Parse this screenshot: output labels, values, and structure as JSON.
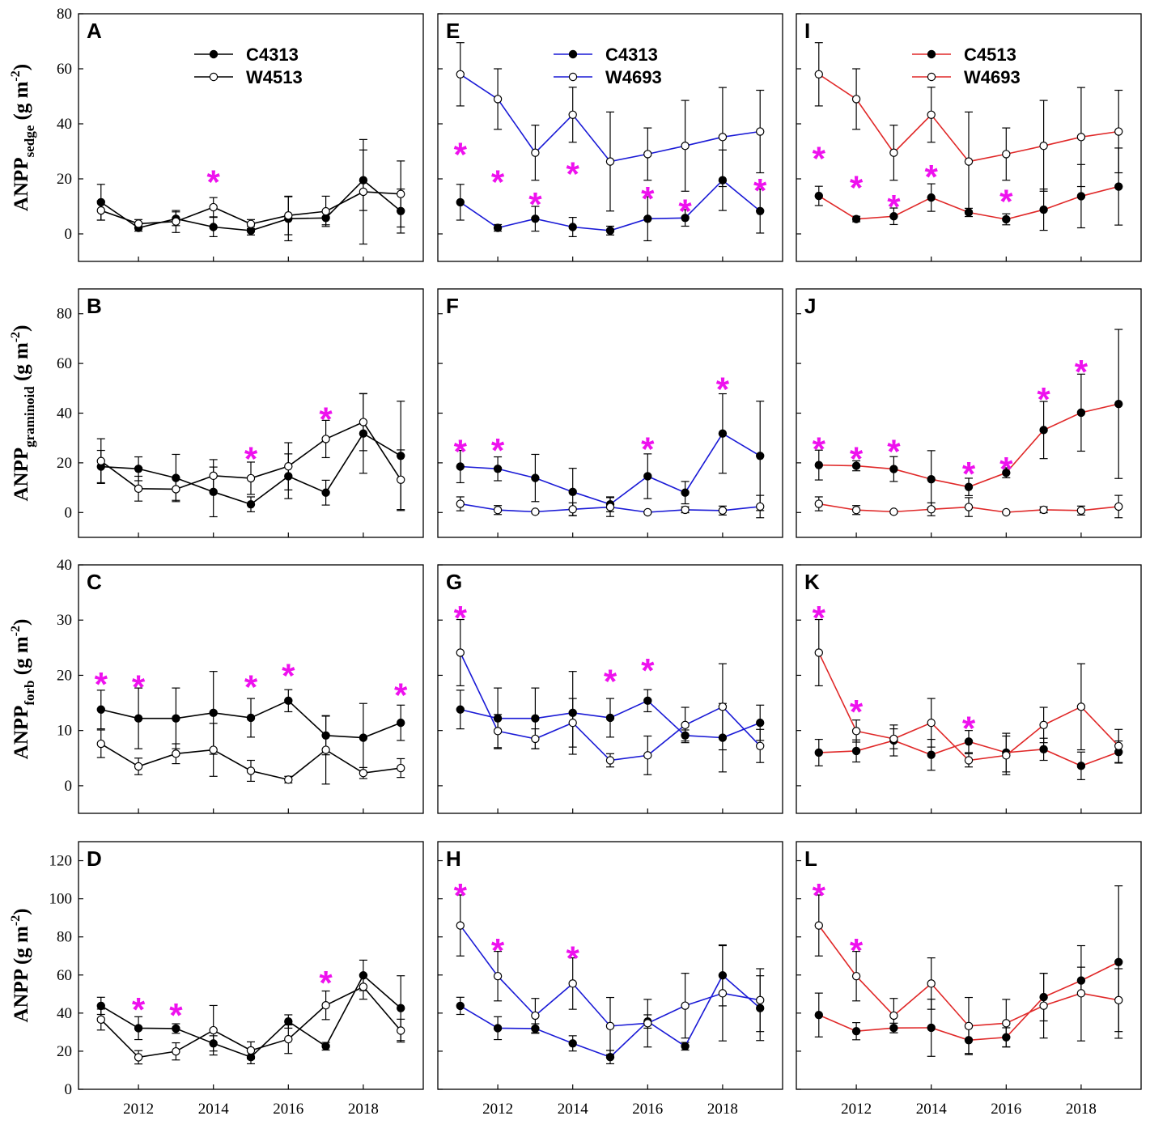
{
  "colors": {
    "black": "#000000",
    "blue": "#1a1ad6",
    "red": "#e02828",
    "star": "#ee11ee",
    "axis": "#000000"
  },
  "star_symbol": "*",
  "x_ticks": [
    2012,
    2014,
    2016,
    2018
  ],
  "years": [
    2011,
    2012,
    2013,
    2014,
    2015,
    2016,
    2017,
    2018,
    2019
  ],
  "rows": [
    {
      "ylabel_main": "ANPP",
      "ylabel_sub": "sedge",
      "ylabel_unit": "(g m",
      "ylabel_exp": "-2",
      "ylabel_close": ")",
      "ylim": [
        -10,
        80
      ],
      "yticks": [
        0,
        20,
        40,
        60,
        80
      ]
    },
    {
      "ylabel_main": "ANPP",
      "ylabel_sub": "graminoid",
      "ylabel_unit": "(g m",
      "ylabel_exp": "-2",
      "ylabel_close": ")",
      "ylim": [
        -10,
        90
      ],
      "yticks": [
        0,
        20,
        40,
        60,
        80
      ]
    },
    {
      "ylabel_main": "ANPP",
      "ylabel_sub": "forb",
      "ylabel_unit": "(g m",
      "ylabel_exp": "-2",
      "ylabel_close": ")",
      "ylim": [
        -5,
        40
      ],
      "yticks": [
        0,
        10,
        20,
        30,
        40
      ]
    },
    {
      "ylabel_main": "ANPP",
      "ylabel_sub": "",
      "ylabel_unit": "(g m",
      "ylabel_exp": "-2",
      "ylabel_close": ")",
      "ylim": [
        0,
        130
      ],
      "yticks": [
        0,
        20,
        40,
        60,
        80,
        100,
        120
      ]
    }
  ],
  "chart_data": [
    {
      "type": "line",
      "panel": "A",
      "row": 0,
      "col": 0,
      "color": "black",
      "legend": [
        "C4313",
        "W4513"
      ],
      "series": [
        {
          "name": "C4313",
          "fill": "filled",
          "values": [
            11.5,
            2.2,
            5.5,
            2.5,
            1.2,
            5.5,
            5.8,
            19.5,
            8.3
          ],
          "err": [
            6.5,
            1.2,
            2.5,
            3.5,
            1.6,
            8,
            2.5,
            11,
            8
          ]
        },
        {
          "name": "W4513",
          "fill": "open",
          "values": [
            8.5,
            3.7,
            4.5,
            9.7,
            3.6,
            6.7,
            8.2,
            15.3,
            14.5
          ],
          "err": [
            3.5,
            1.5,
            4,
            3.5,
            1.6,
            7,
            5.5,
            19,
            12
          ]
        }
      ],
      "stars": [
        {
          "year": 2014,
          "y": 21
        }
      ]
    },
    {
      "type": "line",
      "panel": "E",
      "row": 0,
      "col": 1,
      "color": "blue",
      "legend": [
        "C4313",
        "W4693"
      ],
      "series": [
        {
          "name": "C4313",
          "fill": "filled",
          "values": [
            11.5,
            2.2,
            5.5,
            2.5,
            1.2,
            5.5,
            5.8,
            19.5,
            8.3
          ],
          "err": [
            6.5,
            1.2,
            4.5,
            3.5,
            1.6,
            8,
            3,
            11,
            8
          ]
        },
        {
          "name": "W4693",
          "fill": "open",
          "values": [
            58,
            49,
            29.5,
            43.3,
            26.3,
            29,
            32,
            35.2,
            37.2
          ],
          "err": [
            11.5,
            11,
            10,
            10,
            18,
            9.5,
            16.5,
            18,
            15
          ]
        }
      ],
      "stars": [
        {
          "year": 2011,
          "y": 31
        },
        {
          "year": 2012,
          "y": 21
        },
        {
          "year": 2013,
          "y": 13
        },
        {
          "year": 2014,
          "y": 24
        },
        {
          "year": 2016,
          "y": 15
        },
        {
          "year": 2017,
          "y": 10.5
        },
        {
          "year": 2019,
          "y": 18
        }
      ]
    },
    {
      "type": "line",
      "panel": "I",
      "row": 0,
      "col": 2,
      "color": "red",
      "legend": [
        "C4513",
        "W4693"
      ],
      "series": [
        {
          "name": "C4513",
          "fill": "filled",
          "values": [
            13.8,
            5.4,
            6.4,
            13.2,
            7.8,
            5.3,
            8.8,
            13.7,
            17.2
          ],
          "err": [
            3.5,
            1,
            3,
            5,
            1.5,
            2,
            7.5,
            11.5,
            14
          ]
        },
        {
          "name": "W4693",
          "fill": "open",
          "values": [
            58,
            49,
            29.5,
            43.3,
            26.3,
            29,
            32,
            35.2,
            37.2
          ],
          "err": [
            11.5,
            11,
            10,
            10,
            18,
            9.5,
            16.5,
            18,
            15
          ]
        }
      ],
      "stars": [
        {
          "year": 2011,
          "y": 29.5
        },
        {
          "year": 2012,
          "y": 19
        },
        {
          "year": 2013,
          "y": 12
        },
        {
          "year": 2014,
          "y": 23
        },
        {
          "year": 2016,
          "y": 14
        }
      ]
    },
    {
      "type": "line",
      "panel": "B",
      "row": 1,
      "col": 0,
      "color": "black",
      "series": [
        {
          "name": "C4313",
          "fill": "filled",
          "values": [
            18.5,
            17.6,
            13.9,
            8.3,
            3.3,
            14.6,
            8.0,
            31.8,
            22.8
          ],
          "err": [
            6.5,
            4.8,
            9.5,
            10,
            3,
            9,
            5,
            16,
            22
          ]
        },
        {
          "name": "W4513",
          "fill": "open",
          "values": [
            20.7,
            9.6,
            9.4,
            14.8,
            13.8,
            18.6,
            29.6,
            36.4,
            13.2
          ],
          "err": [
            9,
            5,
            4.5,
            6.5,
            6.5,
            9.5,
            7.5,
            11.5,
            12
          ]
        }
      ],
      "stars": [
        {
          "year": 2015,
          "y": 24
        },
        {
          "year": 2017,
          "y": 40
        }
      ]
    },
    {
      "type": "line",
      "panel": "F",
      "row": 1,
      "col": 1,
      "color": "blue",
      "series": [
        {
          "name": "C4313",
          "fill": "filled",
          "values": [
            18.5,
            17.6,
            13.9,
            8.3,
            3.3,
            14.6,
            8.0,
            31.8,
            22.8
          ],
          "err": [
            6.5,
            4.8,
            9.5,
            9.5,
            3,
            9,
            4.5,
            16,
            22
          ]
        },
        {
          "name": "W4693",
          "fill": "open",
          "values": [
            3.5,
            1.0,
            0.3,
            1.3,
            2.2,
            0.1,
            1.1,
            0.8,
            2.4
          ],
          "err": [
            2.8,
            1.8,
            0.5,
            2.6,
            3.8,
            0.2,
            1.2,
            1.8,
            4.5
          ]
        }
      ],
      "stars": [
        {
          "year": 2011,
          "y": 27
        },
        {
          "year": 2012,
          "y": 27.5
        },
        {
          "year": 2016,
          "y": 28
        },
        {
          "year": 2018,
          "y": 52
        }
      ]
    },
    {
      "type": "line",
      "panel": "J",
      "row": 1,
      "col": 2,
      "color": "red",
      "series": [
        {
          "name": "C4513",
          "fill": "filled",
          "values": [
            19.1,
            18.8,
            17.5,
            13.4,
            10.3,
            16.0,
            33.2,
            40.2,
            43.7
          ],
          "err": [
            6,
            2,
            5,
            11.5,
            3.5,
            2,
            11.5,
            15.5,
            30
          ]
        },
        {
          "name": "W4693",
          "fill": "open",
          "values": [
            3.5,
            1.0,
            0.3,
            1.3,
            2.2,
            0.1,
            1.1,
            0.8,
            2.4
          ],
          "err": [
            2.8,
            1.8,
            0.5,
            2.6,
            3.8,
            0.2,
            1.2,
            1.8,
            4.5
          ]
        }
      ],
      "stars": [
        {
          "year": 2011,
          "y": 28
        },
        {
          "year": 2012,
          "y": 24
        },
        {
          "year": 2013,
          "y": 27
        },
        {
          "year": 2015,
          "y": 18
        },
        {
          "year": 2016,
          "y": 20
        },
        {
          "year": 2017,
          "y": 48
        },
        {
          "year": 2018,
          "y": 59
        }
      ]
    },
    {
      "type": "line",
      "panel": "C",
      "row": 2,
      "col": 0,
      "color": "black",
      "series": [
        {
          "name": "C4313",
          "fill": "filled",
          "values": [
            13.8,
            12.2,
            12.2,
            13.2,
            12.3,
            15.4,
            9.1,
            8.7,
            11.4
          ],
          "err": [
            3.5,
            5.5,
            5.5,
            7.5,
            3.5,
            2,
            3.5,
            6.2,
            3.2
          ]
        },
        {
          "name": "W4513",
          "fill": "open",
          "values": [
            7.6,
            3.5,
            5.8,
            6.5,
            2.7,
            1.1,
            6.5,
            2.3,
            3.2
          ],
          "err": [
            2.5,
            1.5,
            1.8,
            4.8,
            1.9,
            0.6,
            6.2,
            1,
            1.7
          ]
        }
      ],
      "stars": [
        {
          "year": 2011,
          "y": 19.5
        },
        {
          "year": 2012,
          "y": 19
        },
        {
          "year": 2015,
          "y": 19
        },
        {
          "year": 2016,
          "y": 21
        },
        {
          "year": 2019,
          "y": 17.5
        }
      ]
    },
    {
      "type": "line",
      "panel": "G",
      "row": 2,
      "col": 1,
      "color": "blue",
      "series": [
        {
          "name": "C4313",
          "fill": "filled",
          "values": [
            13.8,
            12.2,
            12.2,
            13.2,
            12.3,
            15.4,
            9.1,
            8.7,
            11.4
          ],
          "err": [
            3.5,
            5.5,
            5.5,
            7.5,
            3.5,
            2,
            1,
            6.2,
            3.2
          ]
        },
        {
          "name": "W4693",
          "fill": "open",
          "values": [
            24.1,
            9.9,
            8.5,
            11.4,
            4.6,
            5.5,
            11.0,
            14.3,
            7.2
          ],
          "err": [
            6,
            3,
            1.8,
            4.4,
            1.2,
            3.5,
            3.2,
            7.8,
            3
          ]
        }
      ],
      "stars": [
        {
          "year": 2011,
          "y": 31.5
        },
        {
          "year": 2015,
          "y": 20
        },
        {
          "year": 2016,
          "y": 22
        }
      ]
    },
    {
      "type": "line",
      "panel": "K",
      "row": 2,
      "col": 2,
      "color": "red",
      "series": [
        {
          "name": "C4513",
          "fill": "filled",
          "values": [
            6.0,
            6.3,
            8.2,
            5.6,
            8.0,
            6.0,
            6.6,
            3.6,
            6.1
          ],
          "err": [
            2.4,
            2,
            2.8,
            2.8,
            2,
            3.5,
            2,
            2.5,
            2
          ]
        },
        {
          "name": "W4693",
          "fill": "open",
          "values": [
            24.1,
            9.9,
            8.5,
            11.4,
            4.6,
            5.5,
            11.0,
            14.3,
            7.2
          ],
          "err": [
            6,
            2,
            1.8,
            4.4,
            1.2,
            3.5,
            3.2,
            7.8,
            3
          ]
        }
      ],
      "stars": [
        {
          "year": 2011,
          "y": 31.5
        },
        {
          "year": 2012,
          "y": 14.5
        },
        {
          "year": 2015,
          "y": 11.5
        }
      ]
    },
    {
      "type": "line",
      "panel": "D",
      "row": 3,
      "col": 0,
      "color": "black",
      "series": [
        {
          "name": "C4313",
          "fill": "filled",
          "values": [
            43.8,
            32.1,
            31.9,
            24.1,
            16.9,
            35.6,
            22.6,
            59.8,
            42.6
          ],
          "err": [
            4.5,
            6,
            2.5,
            4,
            3.5,
            3.5,
            2,
            8,
            17
          ]
        },
        {
          "name": "W4513",
          "fill": "open",
          "values": [
            36.6,
            16.8,
            19.9,
            31.0,
            20.4,
            26.3,
            44.1,
            53.8,
            30.8
          ],
          "err": [
            5.5,
            3.5,
            4.5,
            13,
            4.5,
            7.5,
            7.5,
            6.5,
            6
          ]
        }
      ],
      "stars": [
        {
          "year": 2012,
          "y": 45
        },
        {
          "year": 2013,
          "y": 42
        },
        {
          "year": 2017,
          "y": 59
        }
      ]
    },
    {
      "type": "line",
      "panel": "H",
      "row": 3,
      "col": 1,
      "color": "blue",
      "series": [
        {
          "name": "C4313",
          "fill": "filled",
          "values": [
            43.8,
            32.1,
            31.9,
            24.1,
            16.9,
            35.6,
            22.6,
            59.8,
            42.6
          ],
          "err": [
            4.5,
            6,
            2.5,
            4,
            3.5,
            3.5,
            2,
            16,
            17
          ]
        },
        {
          "name": "W4693",
          "fill": "open",
          "values": [
            86.0,
            59.4,
            38.7,
            55.5,
            33.2,
            34.7,
            43.9,
            50.4,
            46.8
          ],
          "err": [
            16,
            13,
            9,
            13.5,
            15,
            12.5,
            17,
            25,
            16.5
          ]
        }
      ],
      "stars": [
        {
          "year": 2011,
          "y": 105
        },
        {
          "year": 2012,
          "y": 76
        },
        {
          "year": 2014,
          "y": 72
        }
      ]
    },
    {
      "type": "line",
      "panel": "L",
      "row": 3,
      "col": 2,
      "color": "red",
      "series": [
        {
          "name": "C4513",
          "fill": "filled",
          "values": [
            39.0,
            30.5,
            32.2,
            32.3,
            25.8,
            27.3,
            48.4,
            57.1,
            66.8
          ],
          "err": [
            11.5,
            4.5,
            2.5,
            15,
            7,
            5,
            12.5,
            7,
            40
          ]
        },
        {
          "name": "W4693",
          "fill": "open",
          "values": [
            86.0,
            59.4,
            38.7,
            55.5,
            33.2,
            34.7,
            43.9,
            50.4,
            46.8
          ],
          "err": [
            16,
            13,
            9,
            13.5,
            15,
            12.5,
            17,
            25,
            16.5
          ]
        }
      ],
      "stars": [
        {
          "year": 2011,
          "y": 105
        },
        {
          "year": 2012,
          "y": 76
        }
      ]
    }
  ]
}
